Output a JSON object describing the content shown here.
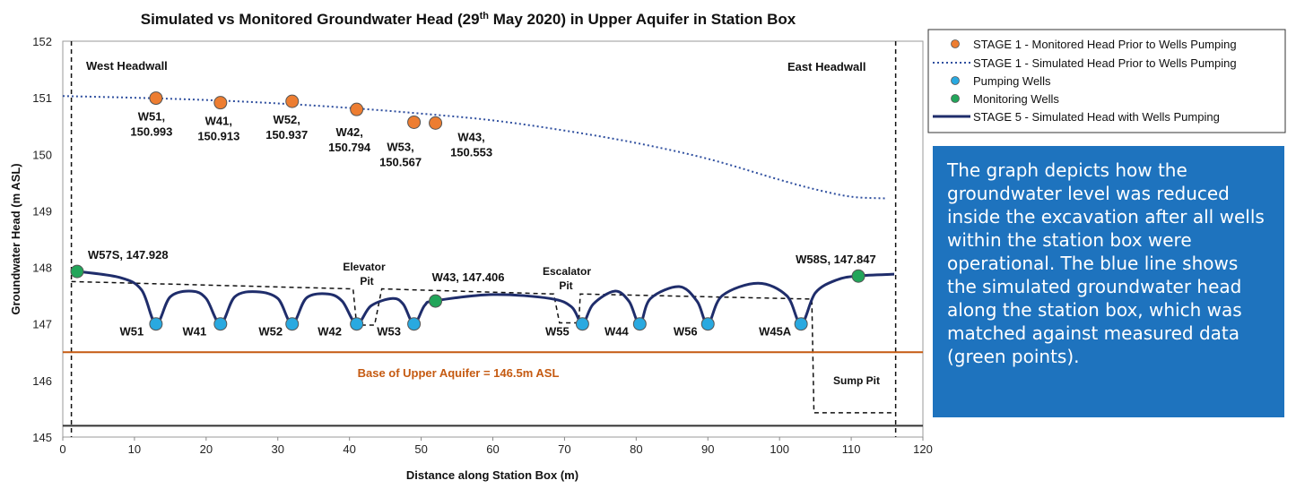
{
  "chart_data": {
    "type": "line",
    "title": "Simulated vs Monitored Groundwater Head (29",
    "title_sup": "th",
    "title_tail": " May 2020) in Upper Aquifer in Station Box",
    "xlabel": "Distance along Station Box (m)",
    "ylabel": "Groundwater Head (m ASL)",
    "xlim": [
      0,
      120
    ],
    "ylim": [
      145,
      152
    ],
    "xticks": [
      0,
      10,
      20,
      30,
      40,
      50,
      60,
      70,
      80,
      90,
      100,
      110,
      120
    ],
    "yticks": [
      145,
      146,
      147,
      148,
      149,
      150,
      151,
      152
    ],
    "series": [
      {
        "name": "STAGE 1 - Monitored Head Prior to Wells Pumping",
        "kind": "points",
        "color": "#ed7d31",
        "points": [
          {
            "x": 13,
            "y": 150.993,
            "label1": "W51,",
            "label2": "150.993"
          },
          {
            "x": 22,
            "y": 150.913,
            "label1": "W41,",
            "label2": "150.913"
          },
          {
            "x": 32,
            "y": 150.937,
            "label1": "W52,",
            "label2": "150.937"
          },
          {
            "x": 41,
            "y": 150.794,
            "label1": "W42,",
            "label2": "150.794"
          },
          {
            "x": 49,
            "y": 150.567,
            "label1": "W53,",
            "label2": "150.567"
          },
          {
            "x": 52,
            "y": 150.553,
            "label1": "W43,",
            "label2": "150.553"
          }
        ]
      },
      {
        "name": "STAGE 1 - Simulated Head Prior to Wells Pumping",
        "kind": "dotted-line",
        "color": "#2f4f9f",
        "x": [
          0,
          10,
          20,
          30,
          40,
          50,
          60,
          70,
          80,
          90,
          100,
          105,
          110,
          115
        ],
        "y": [
          151.03,
          151.0,
          150.96,
          150.9,
          150.82,
          150.72,
          150.6,
          150.42,
          150.2,
          149.92,
          149.55,
          149.38,
          149.25,
          149.22
        ]
      },
      {
        "name": "Pumping Wells",
        "kind": "points",
        "color": "#29a9e0",
        "points": [
          {
            "x": 13,
            "y": 147.0,
            "label": "W51"
          },
          {
            "x": 22,
            "y": 147.0,
            "label": "W41"
          },
          {
            "x": 32,
            "y": 147.0,
            "label": "W52"
          },
          {
            "x": 41,
            "y": 147.0,
            "label": "W42"
          },
          {
            "x": 49,
            "y": 147.0,
            "label": "W53"
          },
          {
            "x": 72.5,
            "y": 147.0,
            "label": "W55"
          },
          {
            "x": 80.5,
            "y": 147.0,
            "label": "W44"
          },
          {
            "x": 90,
            "y": 147.0,
            "label": "W56"
          },
          {
            "x": 103,
            "y": 147.0,
            "label": "W45A"
          }
        ]
      },
      {
        "name": "Monitoring Wells",
        "kind": "points",
        "color": "#22a55a",
        "points": [
          {
            "x": 2,
            "y": 147.928,
            "label": "W57S, 147.928"
          },
          {
            "x": 52,
            "y": 147.406,
            "label": "W43, 147.406"
          },
          {
            "x": 111,
            "y": 147.847,
            "label": "W58S, 147.847"
          }
        ]
      },
      {
        "name": "STAGE 5 - Simulated Head with Wells Pumping",
        "kind": "solid-line",
        "color": "#1f2d6b",
        "x": [
          2,
          8,
          11,
          13,
          15,
          18,
          20,
          22,
          24,
          27,
          30,
          32,
          34,
          37,
          39,
          41,
          43,
          46,
          47.5,
          49,
          50.5,
          52,
          60,
          68,
          71,
          72.5,
          74,
          77,
          79,
          80.5,
          82,
          86,
          88.5,
          90,
          92,
          97,
          101,
          103,
          105,
          108,
          111,
          116
        ],
        "y": [
          147.93,
          147.82,
          147.6,
          147.0,
          147.48,
          147.58,
          147.45,
          147.0,
          147.48,
          147.57,
          147.45,
          147.0,
          147.46,
          147.53,
          147.4,
          147.0,
          147.32,
          147.45,
          147.35,
          147.0,
          147.33,
          147.41,
          147.52,
          147.45,
          147.3,
          147.0,
          147.35,
          147.58,
          147.4,
          147.0,
          147.45,
          147.66,
          147.4,
          147.0,
          147.5,
          147.72,
          147.5,
          147.0,
          147.55,
          147.78,
          147.85,
          147.88
        ]
      }
    ],
    "base_line": {
      "y": 146.5,
      "label": "Base of Upper Aquifer = 146.5m ASL",
      "color": "#c55a11"
    },
    "structure_labels": {
      "west": "West Headwall",
      "east": "East Headwall",
      "elevator1": "Elevator",
      "elevator2": "Pit",
      "escalator1": "Escalator",
      "escalator2": "Pit",
      "sump": "Sump Pit"
    },
    "legend_position": "top-right-outside"
  },
  "infobox": {
    "text": "The graph depicts how the groundwater level was reduced inside the excavation after all wells within the station box were operational. The blue line shows the simulated groundwater head along the station box,  which was matched against measured data (green points).",
    "background": "#1e73be"
  }
}
